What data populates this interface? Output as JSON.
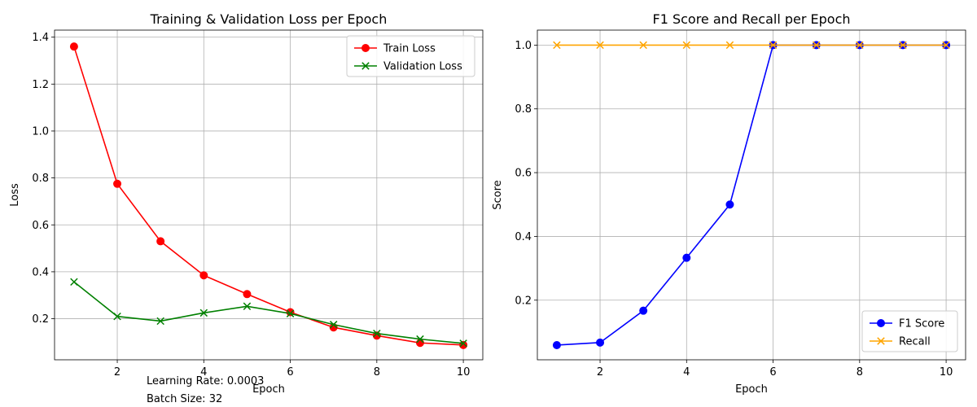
{
  "chart_data": [
    {
      "type": "line",
      "title": "Training & Validation Loss per Epoch",
      "xlabel": "Epoch",
      "ylabel": "Loss",
      "xlim": [
        0.55,
        10.45
      ],
      "ylim": [
        0.025,
        1.43
      ],
      "xticks": [
        2,
        4,
        6,
        8,
        10
      ],
      "yticks": [
        0.2,
        0.4,
        0.6,
        0.8,
        1.0,
        1.2,
        1.4
      ],
      "grid": true,
      "legend_position": "upper right",
      "x": [
        1,
        2,
        3,
        4,
        5,
        6,
        7,
        8,
        9,
        10
      ],
      "series": [
        {
          "name": "Train Loss",
          "color": "#ff0000",
          "marker": "circle",
          "values": [
            1.36,
            0.775,
            0.53,
            0.385,
            0.305,
            0.228,
            0.163,
            0.128,
            0.097,
            0.088
          ]
        },
        {
          "name": "Validation Loss",
          "color": "#008000",
          "marker": "x",
          "values": [
            0.357,
            0.21,
            0.19,
            0.225,
            0.253,
            0.222,
            0.175,
            0.137,
            0.113,
            0.095
          ]
        }
      ]
    },
    {
      "type": "line",
      "title": "F1 Score and Recall per Epoch",
      "xlabel": "Epoch",
      "ylabel": "Score",
      "xlim": [
        0.55,
        10.45
      ],
      "ylim": [
        0.013,
        1.047
      ],
      "xticks": [
        2,
        4,
        6,
        8,
        10
      ],
      "yticks": [
        0.2,
        0.4,
        0.6,
        0.8,
        1.0
      ],
      "grid": true,
      "legend_position": "lower right",
      "x": [
        1,
        2,
        3,
        4,
        5,
        6,
        7,
        8,
        9,
        10
      ],
      "series": [
        {
          "name": "F1 Score",
          "color": "#0000ff",
          "marker": "circle",
          "values": [
            0.059,
            0.067,
            0.167,
            0.333,
            0.5,
            1.0,
            1.0,
            1.0,
            1.0,
            1.0
          ]
        },
        {
          "name": "Recall",
          "color": "#ffa500",
          "marker": "x",
          "values": [
            1.0,
            1.0,
            1.0,
            1.0,
            1.0,
            1.0,
            1.0,
            1.0,
            1.0,
            1.0
          ]
        }
      ]
    }
  ],
  "annotations": {
    "learning_rate": "Learning Rate: 0.0003",
    "batch_size": "Batch Size: 32"
  }
}
